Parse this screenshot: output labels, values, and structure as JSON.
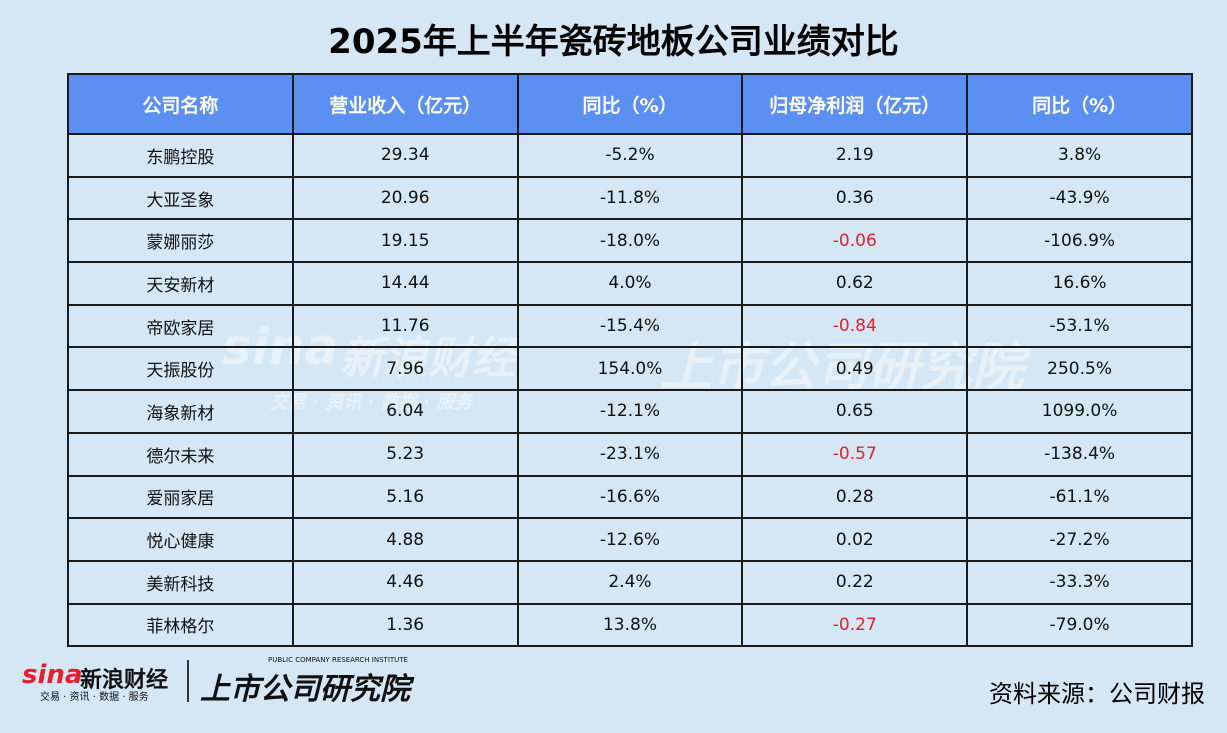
{
  "title": "2025年上半年瓷砖地板公司业绩对比",
  "table": {
    "columns": [
      "公司名称",
      "营业收入（亿元）",
      "同比（%）",
      "归母净利润（亿元）",
      "同比（%）"
    ],
    "rows": [
      [
        "东鹏控股",
        "29.34",
        "-5.2%",
        "2.19",
        "3.8%"
      ],
      [
        "大亚圣象",
        "20.96",
        "-11.8%",
        "0.36",
        "-43.9%"
      ],
      [
        "蒙娜丽莎",
        "19.15",
        "-18.0%",
        "-0.06",
        "-106.9%"
      ],
      [
        "天安新材",
        "14.44",
        "4.0%",
        "0.62",
        "16.6%"
      ],
      [
        "帝欧家居",
        "11.76",
        "-15.4%",
        "-0.84",
        "-53.1%"
      ],
      [
        "天振股份",
        "7.96",
        "154.0%",
        "0.49",
        "250.5%"
      ],
      [
        "海象新材",
        "6.04",
        "-12.1%",
        "0.65",
        "1099.0%"
      ],
      [
        "德尔未来",
        "5.23",
        "-23.1%",
        "-0.57",
        "-138.4%"
      ],
      [
        "爱丽家居",
        "5.16",
        "-16.6%",
        "0.28",
        "-61.1%"
      ],
      [
        "悦心健康",
        "4.88",
        "-12.6%",
        "0.02",
        "-27.2%"
      ],
      [
        "美新科技",
        "4.46",
        "2.4%",
        "0.22",
        "-33.3%"
      ],
      [
        "菲林格尔",
        "1.36",
        "13.8%",
        "-0.27",
        "-79.0%"
      ]
    ],
    "negative_profit_color": "#e3202c"
  },
  "logos": {
    "sina": "sina",
    "sina_cn": "新浪财经",
    "sina_tagline": "交易 · 资讯 · 数据 · 服务",
    "institute": "上市公司研究院",
    "institute_en": "PUBLIC COMPANY RESEARCH INSTITUTE"
  },
  "source": "资料来源：公司财报"
}
